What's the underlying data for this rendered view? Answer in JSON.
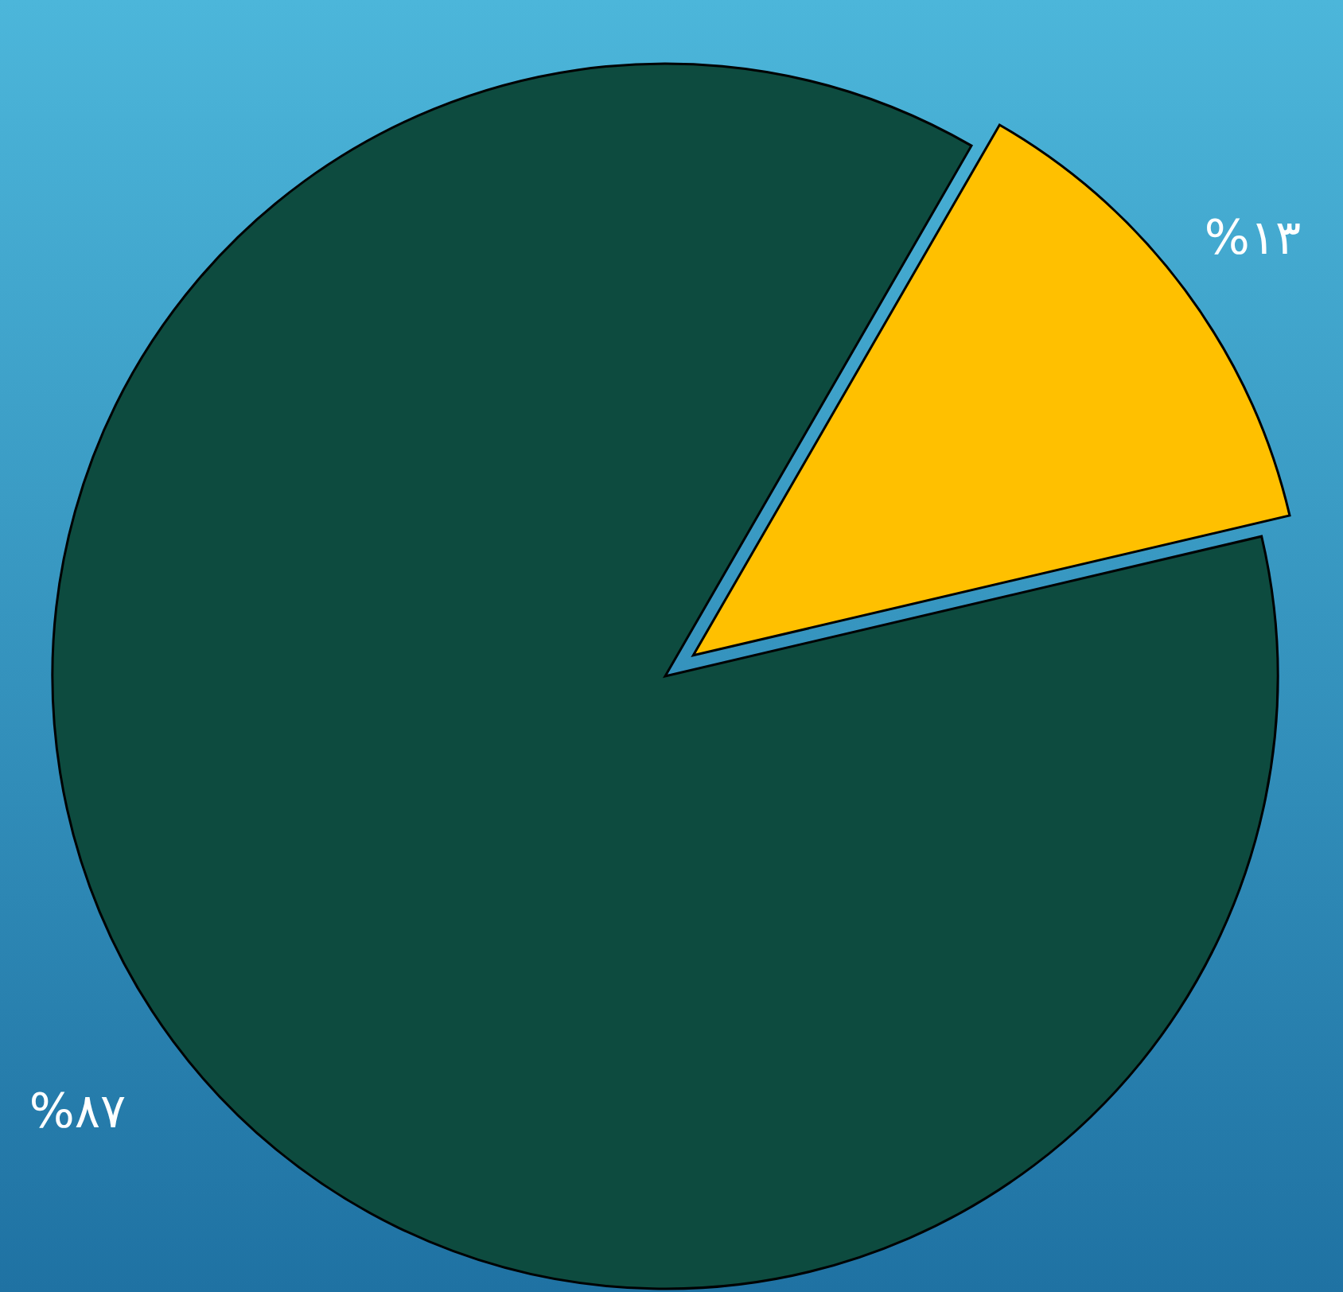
{
  "chart_data": {
    "type": "pie",
    "categories": [
      null,
      null
    ],
    "values": [
      13,
      87
    ],
    "colors": [
      "#ffc000",
      "#0d4b3f"
    ],
    "value_labels": [
      "%۱۳",
      "%۸۷"
    ]
  }
}
